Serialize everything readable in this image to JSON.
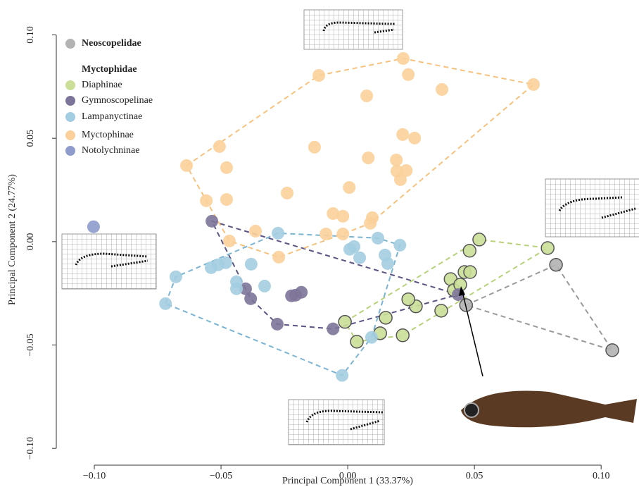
{
  "chart_data": {
    "type": "scatter",
    "x_label": "Principal Component 1 (33.37%)",
    "y_label": "Principal Component 2 (24.77%)",
    "legend_group_title": "Myctophidae",
    "xlim": [
      -0.115,
      0.113
    ],
    "ylim": [
      -0.103,
      0.107
    ],
    "xticks": [
      {
        "value": -0.1,
        "label": "−0.10"
      },
      {
        "value": -0.05,
        "label": "−0.05"
      },
      {
        "value": 0,
        "label": "0.00"
      },
      {
        "value": 0.05,
        "label": "0.05"
      },
      {
        "value": 0.1,
        "label": "0.10"
      }
    ],
    "yticks": [
      {
        "value": -0.1,
        "label": "−0.10"
      },
      {
        "value": -0.05,
        "label": "−0.05"
      },
      {
        "value": 0,
        "label": "0.00"
      },
      {
        "value": 0.05,
        "label": "0.05"
      },
      {
        "value": 0.1,
        "label": "0.10"
      }
    ],
    "series": [
      {
        "name": "Neoscopelidae",
        "color": "#b3b3b3",
        "line_color": "#9a9a9a",
        "x": [
          0.0467,
          0.0822,
          0.1044
        ],
        "y": [
          -0.0307,
          -0.0112,
          -0.0525
        ]
      },
      {
        "name": "Diaphinae",
        "color": "#cbdf98",
        "line_color": "#b8d27a",
        "x": [
          -0.0011,
          0.0036,
          0.015,
          0.0128,
          0.0217,
          0.0269,
          0.0239,
          0.0369,
          0.0406,
          0.0419,
          0.0444,
          0.0461,
          0.0483,
          0.0481,
          0.0519,
          0.0789
        ],
        "y": [
          -0.0388,
          -0.0484,
          -0.0368,
          -0.0443,
          -0.0453,
          -0.0313,
          -0.0279,
          -0.0334,
          -0.0181,
          -0.0235,
          -0.0208,
          -0.0147,
          -0.0147,
          -0.0044,
          0.001,
          -0.0031
        ]
      },
      {
        "name": "Gymnoscopelinae",
        "color": "#7d7499",
        "line_color": "#5c5585",
        "x": [
          -0.0536,
          -0.0403,
          -0.0383,
          -0.0278,
          -0.0222,
          -0.0206,
          -0.0183,
          -0.0058,
          0.0436
        ],
        "y": [
          0.0099,
          -0.0228,
          -0.0276,
          -0.0399,
          -0.0262,
          -0.0259,
          -0.0245,
          -0.0422,
          -0.0256
        ]
      },
      {
        "name": "Lampanyctinae",
        "color": "#a3cde0",
        "line_color": "#7ab4d2",
        "x": [
          -0.0719,
          -0.0678,
          -0.0539,
          -0.0511,
          -0.0481,
          -0.0381,
          -0.0439,
          -0.0439,
          -0.0328,
          -0.0275,
          0.0008,
          0.0025,
          0.0119,
          0.0206,
          0.0047,
          0.0147,
          0.0158,
          0.0094,
          -0.0022
        ],
        "y": [
          -0.03,
          -0.017,
          -0.0126,
          -0.0112,
          -0.0102,
          -0.0109,
          -0.0194,
          -0.0228,
          -0.0215,
          0.0041,
          -0.0037,
          -0.0024,
          0.0017,
          -0.0017,
          -0.0078,
          -0.0065,
          -0.0106,
          -0.0463,
          -0.0647
        ]
      },
      {
        "name": "Myctophinae",
        "color": "#fbd09a",
        "line_color": "#f6c27e",
        "x": [
          0.0219,
          0.0239,
          -0.0114,
          0.0372,
          0.0075,
          -0.0506,
          -0.0131,
          0.0217,
          0.0264,
          0.0081,
          0.0192,
          0.0231,
          0.0194,
          0.0208,
          -0.0636,
          -0.0478,
          0.0006,
          -0.0239,
          -0.0558,
          -0.0478,
          -0.0058,
          -0.0019,
          0.0097,
          0.0089,
          -0.0364,
          -0.0086,
          -0.0019,
          -0.0467,
          -0.0272,
          0.0733
        ],
        "y": [
          0.0886,
          0.0808,
          0.0804,
          0.0736,
          0.0705,
          0.046,
          0.0457,
          0.0518,
          0.0501,
          0.0405,
          0.0395,
          0.0344,
          0.0341,
          0.03,
          0.0368,
          0.0358,
          0.0262,
          0.0235,
          0.0198,
          0.0204,
          0.0136,
          0.0123,
          0.0116,
          0.0089,
          0.0051,
          0.0037,
          0.0037,
          0.0003,
          -0.0075,
          0.076
        ]
      },
      {
        "name": "Notolychninae",
        "color": "#8e9bcc",
        "line_color": "#7080b8",
        "x": [
          -0.1003
        ],
        "y": [
          0.0072
        ]
      }
    ]
  }
}
